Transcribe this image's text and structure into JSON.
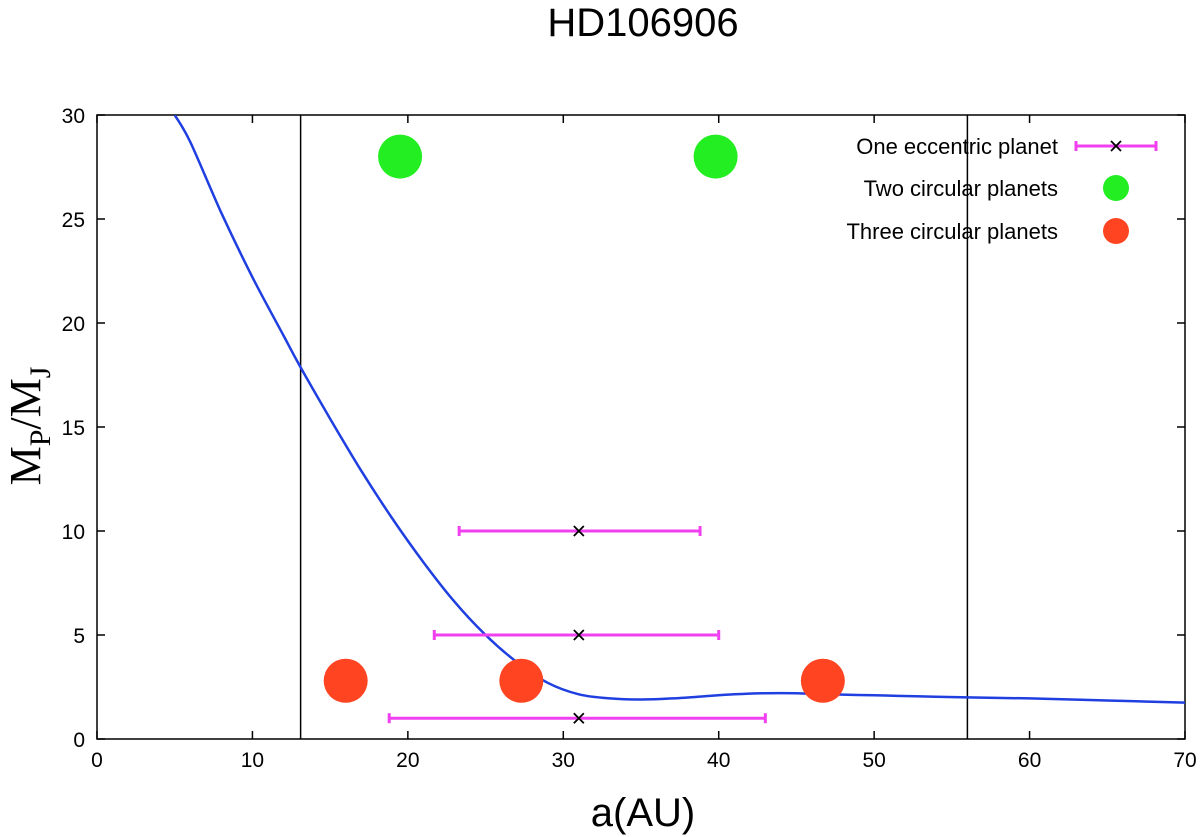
{
  "chart_data": {
    "type": "scatter",
    "title": "HD106906",
    "xlabel": "a(AU)",
    "ylabel": {
      "main": "M",
      "sub1": "P",
      "slash": "/M",
      "sub2": "J"
    },
    "xlim": [
      0,
      70
    ],
    "ylim": [
      0,
      30
    ],
    "x_ticks": [
      0,
      10,
      20,
      30,
      40,
      50,
      60,
      70
    ],
    "y_ticks": [
      0,
      5,
      10,
      15,
      20,
      25,
      30
    ],
    "grid": false,
    "legend_position": "top-right",
    "vertical_lines": [
      13.1,
      56
    ],
    "colors": {
      "curve": "#1f3fe0",
      "errorbar": "#f040f0",
      "two_planets": "#22ee22",
      "three_planets": "#ff4422",
      "axis": "#000000"
    },
    "curve": {
      "x": [
        5,
        6,
        8,
        10,
        12,
        13,
        15,
        17,
        19,
        21,
        23,
        25,
        27,
        29,
        31,
        33,
        35,
        37,
        39,
        41,
        43,
        45,
        47,
        50,
        53,
        56,
        60,
        65,
        70
      ],
      "y": [
        30,
        28.7,
        25.3,
        22.2,
        19.4,
        18.0,
        15.4,
        12.9,
        10.6,
        8.5,
        6.6,
        5.0,
        3.7,
        2.7,
        2.15,
        1.95,
        1.9,
        1.95,
        2.05,
        2.15,
        2.2,
        2.2,
        2.15,
        2.1,
        2.05,
        2.0,
        1.95,
        1.85,
        1.75
      ]
    },
    "series": [
      {
        "name": "One eccentric planet",
        "marker": "x",
        "points": [
          {
            "x": 31,
            "y": 10,
            "xmin": 23.3,
            "xmax": 38.8
          },
          {
            "x": 31,
            "y": 5,
            "xmin": 21.7,
            "xmax": 40
          },
          {
            "x": 31,
            "y": 1,
            "xmin": 18.8,
            "xmax": 43
          }
        ]
      },
      {
        "name": "Two circular planets",
        "marker": "circle",
        "points": [
          {
            "x": 19.5,
            "y": 28
          },
          {
            "x": 39.8,
            "y": 28
          }
        ]
      },
      {
        "name": "Three circular planets",
        "marker": "circle",
        "points": [
          {
            "x": 16,
            "y": 2.8
          },
          {
            "x": 27.3,
            "y": 2.8
          },
          {
            "x": 46.7,
            "y": 2.8
          }
        ]
      }
    ]
  }
}
